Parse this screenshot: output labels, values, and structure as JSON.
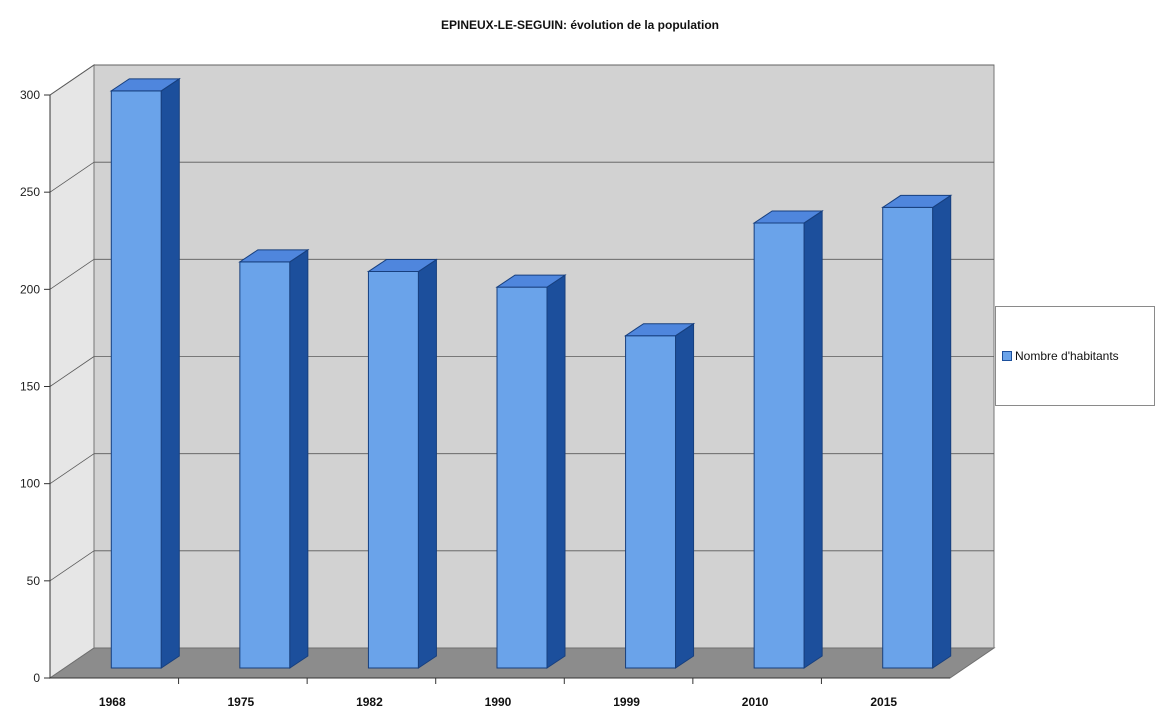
{
  "chart_data": {
    "type": "bar",
    "title": "EPINEUX-LE-SEGUIN: évolution de la population",
    "categories": [
      "1968",
      "1975",
      "1982",
      "1990",
      "1999",
      "2010",
      "2015"
    ],
    "series": [
      {
        "name": "Nombre d'habitants",
        "values": [
          297,
          209,
          204,
          196,
          171,
          229,
          237
        ]
      }
    ],
    "yticks": [
      "0",
      "50",
      "100",
      "150",
      "200",
      "250",
      "300"
    ],
    "ylim": [
      0,
      300
    ],
    "grid": true,
    "three_d": true,
    "legend": "right"
  },
  "colors": {
    "bar_front": "#6aa3ea",
    "bar_side": "#1c4f9c",
    "bar_top": "#4f86dd",
    "wall": "#d2d2d2",
    "floor": "#8c8c8c"
  }
}
